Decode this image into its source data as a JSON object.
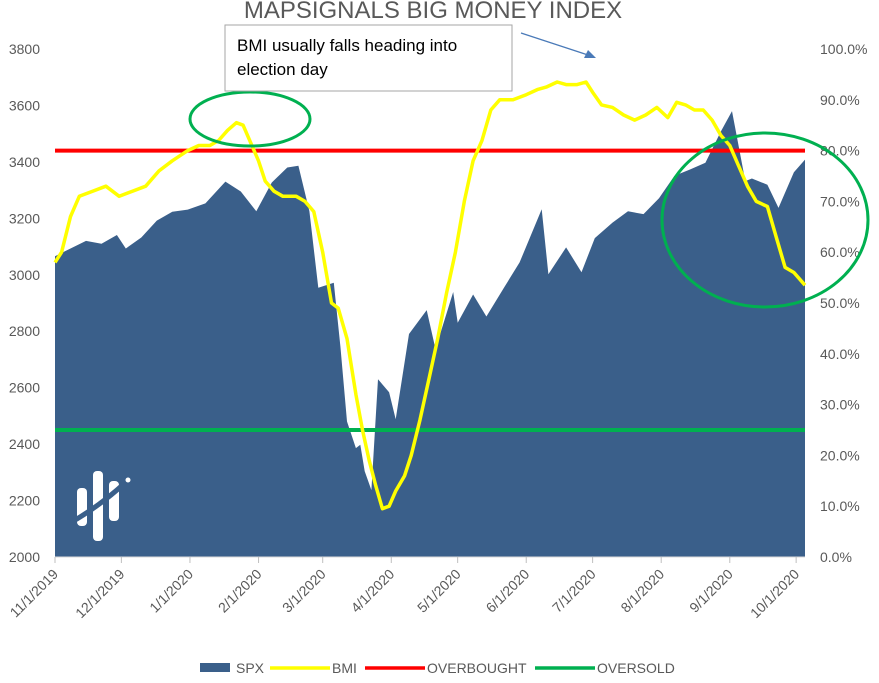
{
  "chart_data": {
    "type": "area",
    "title": "MAPSIGNALS BIG MONEY INDEX",
    "x_tick_labels": [
      "11/1/2019",
      "12/1/2019",
      "1/1/2020",
      "2/1/2020",
      "3/1/2020",
      "4/1/2020",
      "5/1/2020",
      "6/1/2020",
      "7/1/2020",
      "8/1/2020",
      "9/1/2020",
      "10/1/2020"
    ],
    "x_range": [
      "2019-11-01",
      "2020-10-05"
    ],
    "y_left": {
      "range": [
        2000,
        3800
      ],
      "ticks": [
        "2000",
        "2200",
        "2400",
        "2600",
        "2800",
        "3000",
        "3200",
        "3400",
        "3600",
        "3800"
      ]
    },
    "y_right": {
      "range": [
        0,
        100
      ],
      "ticks": [
        "0.0%",
        "10.0%",
        "20.0%",
        "30.0%",
        "40.0%",
        "50.0%",
        "60.0%",
        "70.0%",
        "80.0%",
        "90.0%",
        "100.0%"
      ]
    },
    "series": [
      {
        "name": "SPX",
        "type": "area",
        "axis": "left",
        "color": "#3a5f8a",
        "points": [
          [
            "2019-11-01",
            3066
          ],
          [
            "2019-11-08",
            3093
          ],
          [
            "2019-11-15",
            3120
          ],
          [
            "2019-11-22",
            3110
          ],
          [
            "2019-11-29",
            3141
          ],
          [
            "2019-12-03",
            3093
          ],
          [
            "2019-12-10",
            3132
          ],
          [
            "2019-12-17",
            3192
          ],
          [
            "2019-12-24",
            3223
          ],
          [
            "2019-12-31",
            3231
          ],
          [
            "2020-01-08",
            3253
          ],
          [
            "2020-01-17",
            3330
          ],
          [
            "2020-01-24",
            3295
          ],
          [
            "2020-01-31",
            3225
          ],
          [
            "2020-02-07",
            3327
          ],
          [
            "2020-02-14",
            3380
          ],
          [
            "2020-02-19",
            3386
          ],
          [
            "2020-02-24",
            3225
          ],
          [
            "2020-02-28",
            2954
          ],
          [
            "2020-03-06",
            2972
          ],
          [
            "2020-03-09",
            2746
          ],
          [
            "2020-03-12",
            2480
          ],
          [
            "2020-03-16",
            2386
          ],
          [
            "2020-03-18",
            2398
          ],
          [
            "2020-03-20",
            2304
          ],
          [
            "2020-03-23",
            2237
          ],
          [
            "2020-03-26",
            2630
          ],
          [
            "2020-03-31",
            2584
          ],
          [
            "2020-04-03",
            2488
          ],
          [
            "2020-04-09",
            2790
          ],
          [
            "2020-04-17",
            2875
          ],
          [
            "2020-04-21",
            2737
          ],
          [
            "2020-04-29",
            2939
          ],
          [
            "2020-05-01",
            2830
          ],
          [
            "2020-05-08",
            2930
          ],
          [
            "2020-05-14",
            2852
          ],
          [
            "2020-05-22",
            2955
          ],
          [
            "2020-05-29",
            3044
          ],
          [
            "2020-06-08",
            3232
          ],
          [
            "2020-06-11",
            3002
          ],
          [
            "2020-06-19",
            3097
          ],
          [
            "2020-06-26",
            3009
          ],
          [
            "2020-07-02",
            3130
          ],
          [
            "2020-07-10",
            3185
          ],
          [
            "2020-07-17",
            3225
          ],
          [
            "2020-07-24",
            3215
          ],
          [
            "2020-07-31",
            3271
          ],
          [
            "2020-08-07",
            3351
          ],
          [
            "2020-08-14",
            3373
          ],
          [
            "2020-08-21",
            3397
          ],
          [
            "2020-08-28",
            3508
          ],
          [
            "2020-09-02",
            3580
          ],
          [
            "2020-09-08",
            3332
          ],
          [
            "2020-09-11",
            3341
          ],
          [
            "2020-09-18",
            3319
          ],
          [
            "2020-09-23",
            3237
          ],
          [
            "2020-09-30",
            3363
          ],
          [
            "2020-10-05",
            3408
          ]
        ]
      },
      {
        "name": "BMI",
        "type": "line",
        "axis": "right",
        "color": "#ffff00",
        "points": [
          [
            "2019-11-01",
            58
          ],
          [
            "2019-11-04",
            60
          ],
          [
            "2019-11-08",
            67
          ],
          [
            "2019-11-12",
            71
          ],
          [
            "2019-11-18",
            72
          ],
          [
            "2019-11-24",
            73
          ],
          [
            "2019-11-30",
            71
          ],
          [
            "2019-12-06",
            72
          ],
          [
            "2019-12-12",
            73
          ],
          [
            "2019-12-18",
            76
          ],
          [
            "2019-12-24",
            78
          ],
          [
            "2019-12-31",
            80
          ],
          [
            "2020-01-05",
            81
          ],
          [
            "2020-01-10",
            81
          ],
          [
            "2020-01-14",
            82
          ],
          [
            "2020-01-18",
            84
          ],
          [
            "2020-01-22",
            85.5
          ],
          [
            "2020-01-25",
            85
          ],
          [
            "2020-01-28",
            82
          ],
          [
            "2020-02-01",
            78
          ],
          [
            "2020-02-04",
            74
          ],
          [
            "2020-02-08",
            72
          ],
          [
            "2020-02-12",
            71
          ],
          [
            "2020-02-18",
            71
          ],
          [
            "2020-02-22",
            70
          ],
          [
            "2020-02-26",
            68
          ],
          [
            "2020-03-01",
            60
          ],
          [
            "2020-03-05",
            50
          ],
          [
            "2020-03-08",
            49
          ],
          [
            "2020-03-12",
            43
          ],
          [
            "2020-03-16",
            32
          ],
          [
            "2020-03-19",
            25
          ],
          [
            "2020-03-22",
            19
          ],
          [
            "2020-03-25",
            14
          ],
          [
            "2020-03-28",
            9.5
          ],
          [
            "2020-03-31",
            10
          ],
          [
            "2020-04-03",
            13
          ],
          [
            "2020-04-07",
            16
          ],
          [
            "2020-04-10",
            20
          ],
          [
            "2020-04-14",
            27
          ],
          [
            "2020-04-18",
            35
          ],
          [
            "2020-04-22",
            43
          ],
          [
            "2020-04-26",
            52
          ],
          [
            "2020-04-30",
            60
          ],
          [
            "2020-05-04",
            70
          ],
          [
            "2020-05-08",
            78
          ],
          [
            "2020-05-12",
            82
          ],
          [
            "2020-05-16",
            88
          ],
          [
            "2020-05-20",
            90
          ],
          [
            "2020-05-26",
            90
          ],
          [
            "2020-06-01",
            91
          ],
          [
            "2020-06-06",
            92
          ],
          [
            "2020-06-10",
            92.5
          ],
          [
            "2020-06-15",
            93.5
          ],
          [
            "2020-06-19",
            93
          ],
          [
            "2020-06-24",
            93
          ],
          [
            "2020-06-28",
            93.5
          ],
          [
            "2020-07-01",
            91.5
          ],
          [
            "2020-07-05",
            89
          ],
          [
            "2020-07-10",
            88.5
          ],
          [
            "2020-07-15",
            87
          ],
          [
            "2020-07-20",
            86
          ],
          [
            "2020-07-25",
            87
          ],
          [
            "2020-07-30",
            88.5
          ],
          [
            "2020-08-04",
            86.5
          ],
          [
            "2020-08-08",
            89.5
          ],
          [
            "2020-08-12",
            89
          ],
          [
            "2020-08-16",
            88
          ],
          [
            "2020-08-20",
            88
          ],
          [
            "2020-08-24",
            86
          ],
          [
            "2020-08-28",
            83
          ],
          [
            "2020-09-01",
            81
          ],
          [
            "2020-09-05",
            77
          ],
          [
            "2020-09-09",
            73
          ],
          [
            "2020-09-13",
            70
          ],
          [
            "2020-09-18",
            69
          ],
          [
            "2020-09-22",
            63
          ],
          [
            "2020-09-26",
            57
          ],
          [
            "2020-09-30",
            56
          ],
          [
            "2020-10-05",
            53.5
          ]
        ]
      },
      {
        "name": "OVERBOUGHT",
        "type": "hline",
        "axis": "right",
        "value": 80,
        "color": "#ff0000"
      },
      {
        "name": "OVERSOLD",
        "type": "hline",
        "axis": "right",
        "value": 25,
        "color": "#00b050"
      }
    ],
    "annotation": {
      "lines": [
        "BMI usually falls heading into",
        "election day"
      ],
      "arrow_to": "top-right"
    },
    "highlight_circle_color": "#00b050",
    "legend": {
      "position": "bottom",
      "labels": [
        "SPX",
        "BMI",
        "OVERBOUGHT",
        "OVERSOLD"
      ]
    },
    "grid": false
  }
}
